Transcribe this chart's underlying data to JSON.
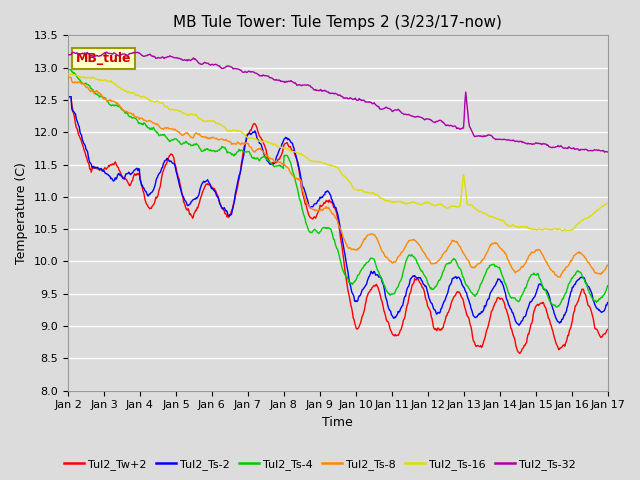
{
  "title": "MB Tule Tower: Tule Temps 2 (3/23/17-now)",
  "xlabel": "Time",
  "ylabel": "Temperature (C)",
  "ylim": [
    8.0,
    13.5
  ],
  "xlim": [
    0,
    15
  ],
  "bg_color": "#dcdcdc",
  "plot_bg_color": "#dcdcdc",
  "series_colors": {
    "Tul2_Tw+2": "#ff0000",
    "Tul2_Ts-2": "#0000ff",
    "Tul2_Ts-4": "#00cc00",
    "Tul2_Ts-8": "#ff8800",
    "Tul2_Ts-16": "#dddd00",
    "Tul2_Ts-32": "#aa00aa"
  },
  "annot_text": "MB_tule",
  "annot_color": "#cc0000",
  "annot_bg": "#ffffcc",
  "annot_edge": "#999900",
  "title_fontsize": 11,
  "label_fontsize": 9,
  "tick_fontsize": 8,
  "legend_fontsize": 8,
  "tick_labels": [
    "Jan 2",
    "Jan 3",
    "Jan 4",
    "Jan 5",
    "Jan 6",
    "Jan 7",
    "Jan 8",
    "Jan 9",
    "Jan 10",
    "Jan 11",
    "Jan 12",
    "Jan 13",
    "Jan 14",
    "Jan 15",
    "Jan 16",
    "Jan 17"
  ]
}
